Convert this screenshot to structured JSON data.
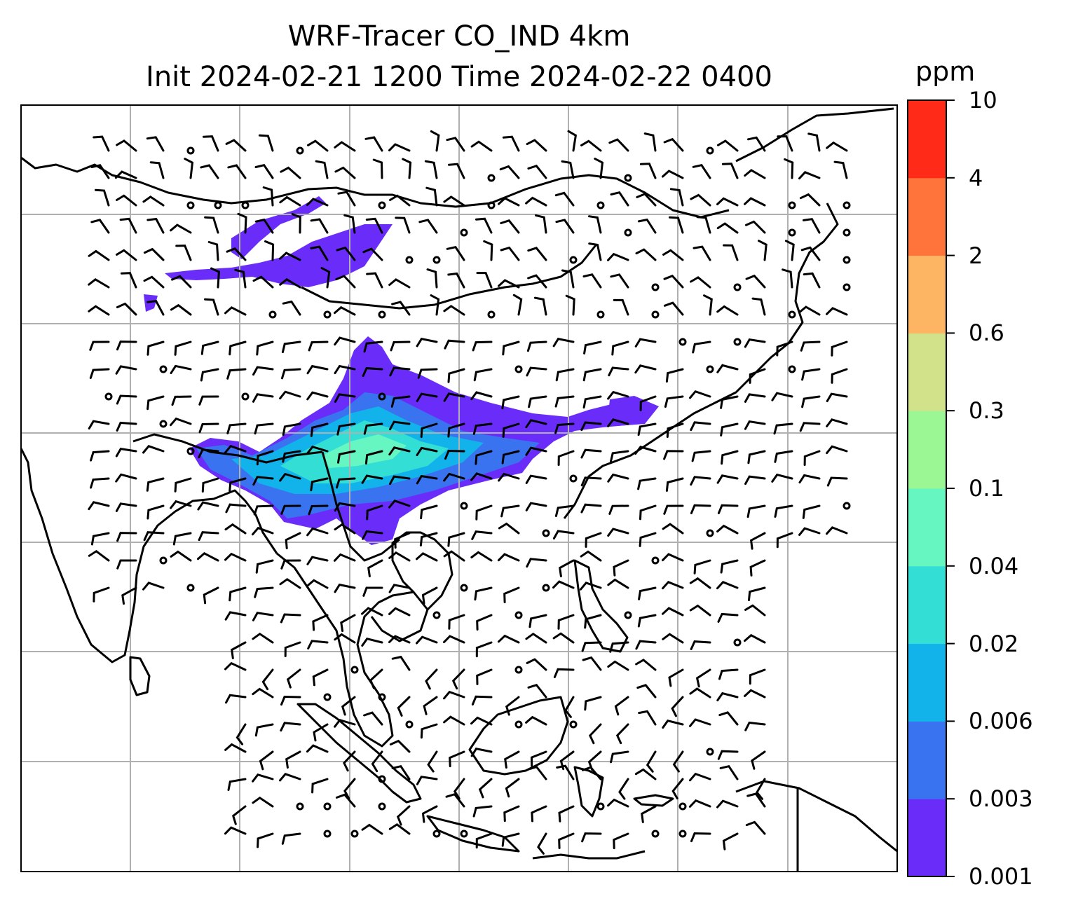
{
  "title": {
    "line1": "WRF-Tracer CO_IND 4km",
    "line2": "Init 2024-02-21 1200 Time 2024-02-22 0400"
  },
  "colorbar": {
    "unit": "ppm",
    "ticks": [
      "0.001",
      "0.003",
      "0.006",
      "0.02",
      "0.04",
      "0.1",
      "0.3",
      "0.6",
      "2",
      "4",
      "10"
    ],
    "colors": [
      "#6a2cf8",
      "#3a73f0",
      "#12b2ea",
      "#33dfd4",
      "#66f6c2",
      "#9af794",
      "#d2e28a",
      "#fdb463",
      "#ff743a",
      "#ff2a18"
    ]
  },
  "map": {
    "gridlines": true,
    "field_name": "CO_IND",
    "colors": {
      "coastline": "#000000",
      "grid": "#b0b0b0",
      "barb": "#000000"
    }
  }
}
